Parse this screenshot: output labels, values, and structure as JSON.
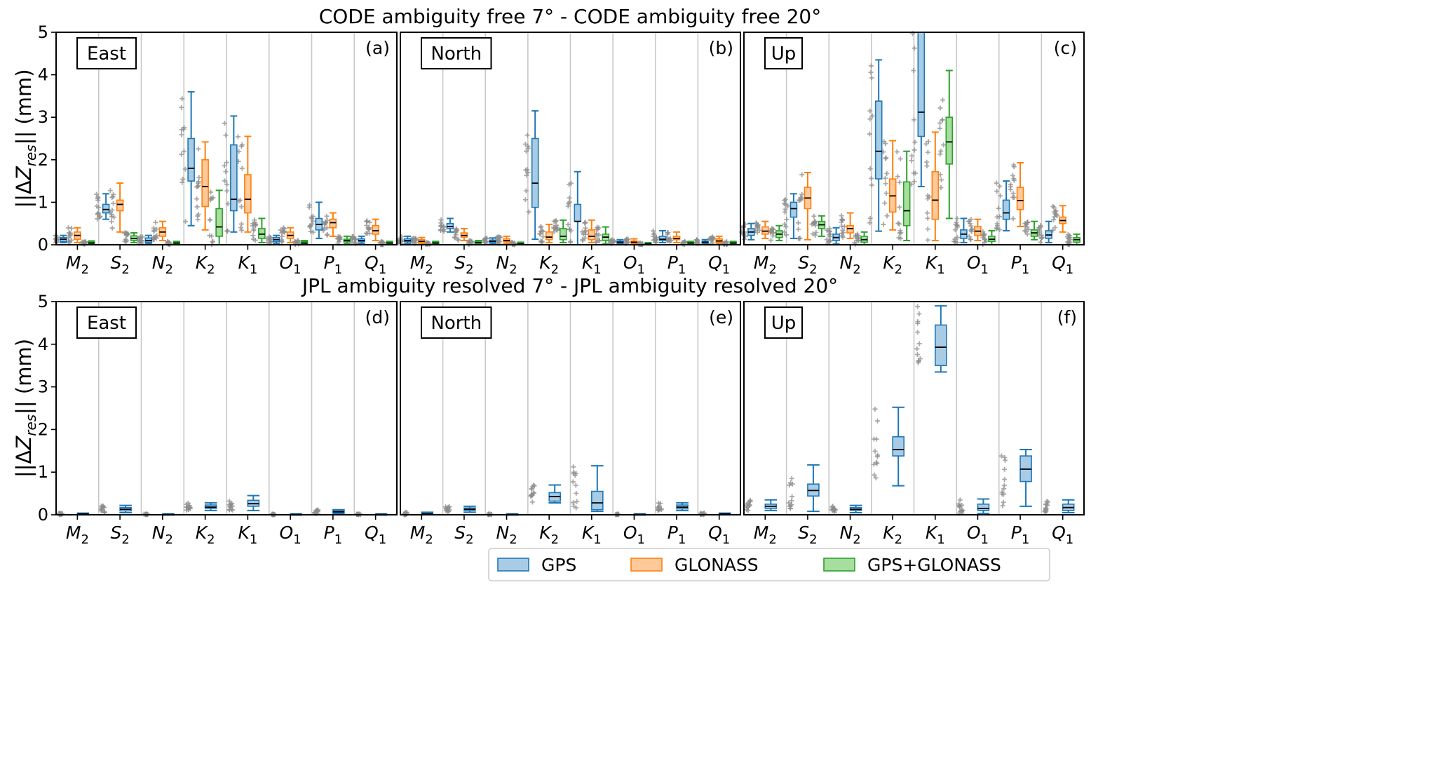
{
  "chart_data": {
    "type": "box",
    "ylabel": "||ΔZres|| (mm)",
    "ylim": [
      0,
      5
    ],
    "yticks": [
      "0",
      "1",
      "2",
      "3",
      "4",
      "5"
    ],
    "categories": [
      "M2",
      "S2",
      "N2",
      "K2",
      "K1",
      "O1",
      "P1",
      "Q1"
    ],
    "legend": {
      "position": "bottom-center",
      "items": [
        {
          "name": "GPS",
          "fill": "#a9cce6",
          "edge": "#1f77b4"
        },
        {
          "name": "GLONASS",
          "fill": "#ffc99a",
          "edge": "#ff7f0e"
        },
        {
          "name": "GPS+GLONASS",
          "fill": "#a8dda0",
          "edge": "#2ca02c"
        }
      ]
    },
    "colors": {
      "GPS": "#1f77b4",
      "GLONASS": "#ff7f0e",
      "GPS+GLONASS": "#2ca02c",
      "points": "#8c8c8c",
      "grid": "#c8c8c8"
    },
    "rows": [
      {
        "title": "CODE ambiguity free  7° - CODE  ambiguity free 20°",
        "panels": [
          {
            "name": "East",
            "label": "(a)",
            "boxes": [
              [
                [
                  0.05,
                  0.08,
                  0.13,
                  0.17,
                  0.22
                ],
                [
                  0.05,
                  0.13,
                  0.22,
                  0.3,
                  0.4
                ],
                [
                  0.0,
                  0.02,
                  0.04,
                  0.06,
                  0.09
                ]
              ],
              [
                [
                  0.6,
                  0.75,
                  0.83,
                  0.95,
                  1.2
                ],
                [
                  0.3,
                  0.8,
                  0.95,
                  1.05,
                  1.45
                ],
                [
                  0.05,
                  0.1,
                  0.15,
                  0.21,
                  0.28
                ]
              ],
              [
                [
                  0.03,
                  0.06,
                  0.1,
                  0.16,
                  0.22
                ],
                [
                  0.1,
                  0.2,
                  0.3,
                  0.4,
                  0.55
                ],
                [
                  0.0,
                  0.02,
                  0.04,
                  0.06,
                  0.08
                ]
              ],
              [
                [
                  0.45,
                  1.5,
                  1.8,
                  2.5,
                  3.6
                ],
                [
                  0.35,
                  0.9,
                  1.37,
                  2.0,
                  2.42
                ],
                [
                  0.0,
                  0.2,
                  0.42,
                  0.85,
                  1.28
                ]
              ],
              [
                [
                  0.3,
                  0.8,
                  1.07,
                  2.35,
                  3.03
                ],
                [
                  0.3,
                  0.75,
                  1.07,
                  1.65,
                  2.55
                ],
                [
                  0.05,
                  0.15,
                  0.25,
                  0.38,
                  0.62
                ]
              ],
              [
                [
                  0.03,
                  0.07,
                  0.12,
                  0.17,
                  0.22
                ],
                [
                  0.05,
                  0.15,
                  0.22,
                  0.3,
                  0.4
                ],
                [
                  0.0,
                  0.02,
                  0.04,
                  0.07,
                  0.1
                ]
              ],
              [
                [
                  0.15,
                  0.35,
                  0.48,
                  0.62,
                  1.0
                ],
                [
                  0.2,
                  0.4,
                  0.52,
                  0.6,
                  0.75
                ],
                [
                  0.03,
                  0.07,
                  0.1,
                  0.13,
                  0.2
                ]
              ],
              [
                [
                  0.03,
                  0.07,
                  0.1,
                  0.14,
                  0.2
                ],
                [
                  0.1,
                  0.25,
                  0.33,
                  0.45,
                  0.6
                ],
                [
                  0.0,
                  0.02,
                  0.04,
                  0.06,
                  0.08
                ]
              ]
            ]
          },
          {
            "name": "North",
            "label": "(b)",
            "boxes": [
              [
                [
                  0.03,
                  0.07,
                  0.1,
                  0.14,
                  0.2
                ],
                [
                  0.02,
                  0.05,
                  0.08,
                  0.12,
                  0.17
                ],
                [
                  0.0,
                  0.02,
                  0.04,
                  0.06,
                  0.08
                ]
              ],
              [
                [
                  0.3,
                  0.38,
                  0.43,
                  0.5,
                  0.62
                ],
                [
                  0.1,
                  0.18,
                  0.22,
                  0.28,
                  0.38
                ],
                [
                  0.0,
                  0.03,
                  0.05,
                  0.07,
                  0.1
                ]
              ],
              [
                [
                  0.02,
                  0.05,
                  0.08,
                  0.11,
                  0.16
                ],
                [
                  0.03,
                  0.07,
                  0.1,
                  0.14,
                  0.2
                ],
                [
                  0.0,
                  0.01,
                  0.02,
                  0.04,
                  0.06
                ]
              ],
              [
                [
                  0.13,
                  0.88,
                  1.45,
                  2.5,
                  3.15
                ],
                [
                  0.05,
                  0.12,
                  0.18,
                  0.3,
                  0.48
                ],
                [
                  0.05,
                  0.12,
                  0.2,
                  0.38,
                  0.58
                ]
              ],
              [
                [
                  0.0,
                  0.55,
                  0.55,
                  0.95,
                  1.72
                ],
                [
                  0.05,
                  0.12,
                  0.2,
                  0.35,
                  0.58
                ],
                [
                  0.02,
                  0.1,
                  0.18,
                  0.25,
                  0.42
                ]
              ],
              [
                [
                  0.02,
                  0.04,
                  0.06,
                  0.08,
                  0.12
                ],
                [
                  0.02,
                  0.04,
                  0.06,
                  0.09,
                  0.14
                ],
                [
                  0.0,
                  0.01,
                  0.02,
                  0.03,
                  0.05
                ]
              ],
              [
                [
                  0.05,
                  0.1,
                  0.13,
                  0.2,
                  0.33
                ],
                [
                  0.05,
                  0.12,
                  0.15,
                  0.2,
                  0.3
                ],
                [
                  0.0,
                  0.02,
                  0.04,
                  0.06,
                  0.08
                ]
              ],
              [
                [
                  0.02,
                  0.04,
                  0.06,
                  0.08,
                  0.12
                ],
                [
                  0.03,
                  0.06,
                  0.09,
                  0.14,
                  0.2
                ],
                [
                  0.0,
                  0.02,
                  0.04,
                  0.06,
                  0.08
                ]
              ]
            ]
          },
          {
            "name": "Up",
            "label": "(c)",
            "boxes": [
              [
                [
                  0.12,
                  0.22,
                  0.3,
                  0.38,
                  0.5
                ],
                [
                  0.15,
                  0.25,
                  0.32,
                  0.42,
                  0.55
                ],
                [
                  0.1,
                  0.17,
                  0.25,
                  0.33,
                  0.45
                ]
              ],
              [
                [
                  0.15,
                  0.65,
                  0.85,
                  1.0,
                  1.2
                ],
                [
                  0.12,
                  0.85,
                  1.1,
                  1.35,
                  1.7
                ],
                [
                  0.2,
                  0.38,
                  0.47,
                  0.55,
                  0.68
                ]
              ],
              [
                [
                  0.02,
                  0.1,
                  0.17,
                  0.25,
                  0.4
                ],
                [
                  0.15,
                  0.28,
                  0.38,
                  0.45,
                  0.75
                ],
                [
                  0.0,
                  0.06,
                  0.12,
                  0.2,
                  0.3
                ]
              ],
              [
                [
                  0.32,
                  1.55,
                  2.2,
                  3.38,
                  4.35
                ],
                [
                  0.35,
                  0.77,
                  1.15,
                  1.55,
                  2.45
                ],
                [
                  0.1,
                  0.45,
                  0.8,
                  1.48,
                  2.2
                ]
              ],
              [
                [
                  1.37,
                  2.55,
                  3.12,
                  5.2,
                  5.2
                ],
                [
                  0.1,
                  0.6,
                  1.05,
                  1.72,
                  2.65
                ],
                [
                  0.62,
                  1.9,
                  2.42,
                  3.0,
                  4.1
                ]
              ],
              [
                [
                  0.05,
                  0.15,
                  0.25,
                  0.35,
                  0.62
                ],
                [
                  0.1,
                  0.22,
                  0.32,
                  0.43,
                  0.6
                ],
                [
                  0.0,
                  0.08,
                  0.13,
                  0.2,
                  0.33
                ]
              ],
              [
                [
                  0.33,
                  0.6,
                  0.75,
                  1.05,
                  1.5
                ],
                [
                  0.43,
                  0.83,
                  1.04,
                  1.35,
                  1.93
                ],
                [
                  0.12,
                  0.2,
                  0.28,
                  0.35,
                  0.55
                ]
              ],
              [
                [
                  0.05,
                  0.15,
                  0.23,
                  0.33,
                  0.55
                ],
                [
                  0.3,
                  0.5,
                  0.57,
                  0.65,
                  0.92
                ],
                [
                  0.0,
                  0.06,
                  0.12,
                  0.17,
                  0.25
                ]
              ]
            ]
          }
        ]
      },
      {
        "title": "JPL ambiguity resolved   7° - JPL ambiguity resolved  20°",
        "panels": [
          {
            "name": "East",
            "label": "(d)",
            "boxes": [
              [
                [
                  0.0,
                  0.01,
                  0.02,
                  0.03,
                  0.04
                ]
              ],
              [
                [
                  0.05,
                  0.09,
                  0.13,
                  0.17,
                  0.22
                ]
              ],
              [
                [
                  0.0,
                  0.005,
                  0.01,
                  0.015,
                  0.02
                ]
              ],
              [
                [
                  0.1,
                  0.15,
                  0.18,
                  0.23,
                  0.28
                ]
              ],
              [
                [
                  0.1,
                  0.2,
                  0.26,
                  0.34,
                  0.45
                ]
              ],
              [
                [
                  0.0,
                  0.005,
                  0.01,
                  0.015,
                  0.02
                ]
              ],
              [
                [
                  0.03,
                  0.05,
                  0.07,
                  0.1,
                  0.12
                ]
              ],
              [
                [
                  0.0,
                  0.005,
                  0.01,
                  0.015,
                  0.02
                ]
              ]
            ]
          },
          {
            "name": "North",
            "label": "(e)",
            "boxes": [
              [
                [
                  0.0,
                  0.01,
                  0.02,
                  0.04,
                  0.06
                ]
              ],
              [
                [
                  0.06,
                  0.1,
                  0.13,
                  0.16,
                  0.2
                ]
              ],
              [
                [
                  0.0,
                  0.005,
                  0.01,
                  0.015,
                  0.02
                ]
              ],
              [
                [
                  0.28,
                  0.32,
                  0.43,
                  0.52,
                  0.7
                ]
              ],
              [
                [
                  0.08,
                  0.12,
                  0.28,
                  0.55,
                  1.15
                ]
              ],
              [
                [
                  0.0,
                  0.005,
                  0.01,
                  0.015,
                  0.02
                ]
              ],
              [
                [
                  0.1,
                  0.14,
                  0.18,
                  0.23,
                  0.28
                ]
              ],
              [
                [
                  0.0,
                  0.01,
                  0.02,
                  0.03,
                  0.04
                ]
              ]
            ]
          },
          {
            "name": "Up",
            "label": "(f)",
            "boxes": [
              [
                [
                  0.1,
                  0.15,
                  0.2,
                  0.25,
                  0.35
                ]
              ],
              [
                [
                  0.08,
                  0.44,
                  0.57,
                  0.72,
                  1.17
                ]
              ],
              [
                [
                  0.05,
                  0.1,
                  0.13,
                  0.17,
                  0.22
                ]
              ],
              [
                [
                  0.68,
                  1.38,
                  1.53,
                  1.83,
                  2.52
                ]
              ],
              [
                [
                  3.35,
                  3.5,
                  3.93,
                  4.45,
                  4.9
                ]
              ],
              [
                [
                  0.03,
                  0.1,
                  0.15,
                  0.25,
                  0.37
                ]
              ],
              [
                [
                  0.2,
                  0.78,
                  1.07,
                  1.38,
                  1.53
                ]
              ],
              [
                [
                  0.05,
                  0.1,
                  0.17,
                  0.25,
                  0.35
                ]
              ]
            ]
          }
        ]
      }
    ]
  }
}
